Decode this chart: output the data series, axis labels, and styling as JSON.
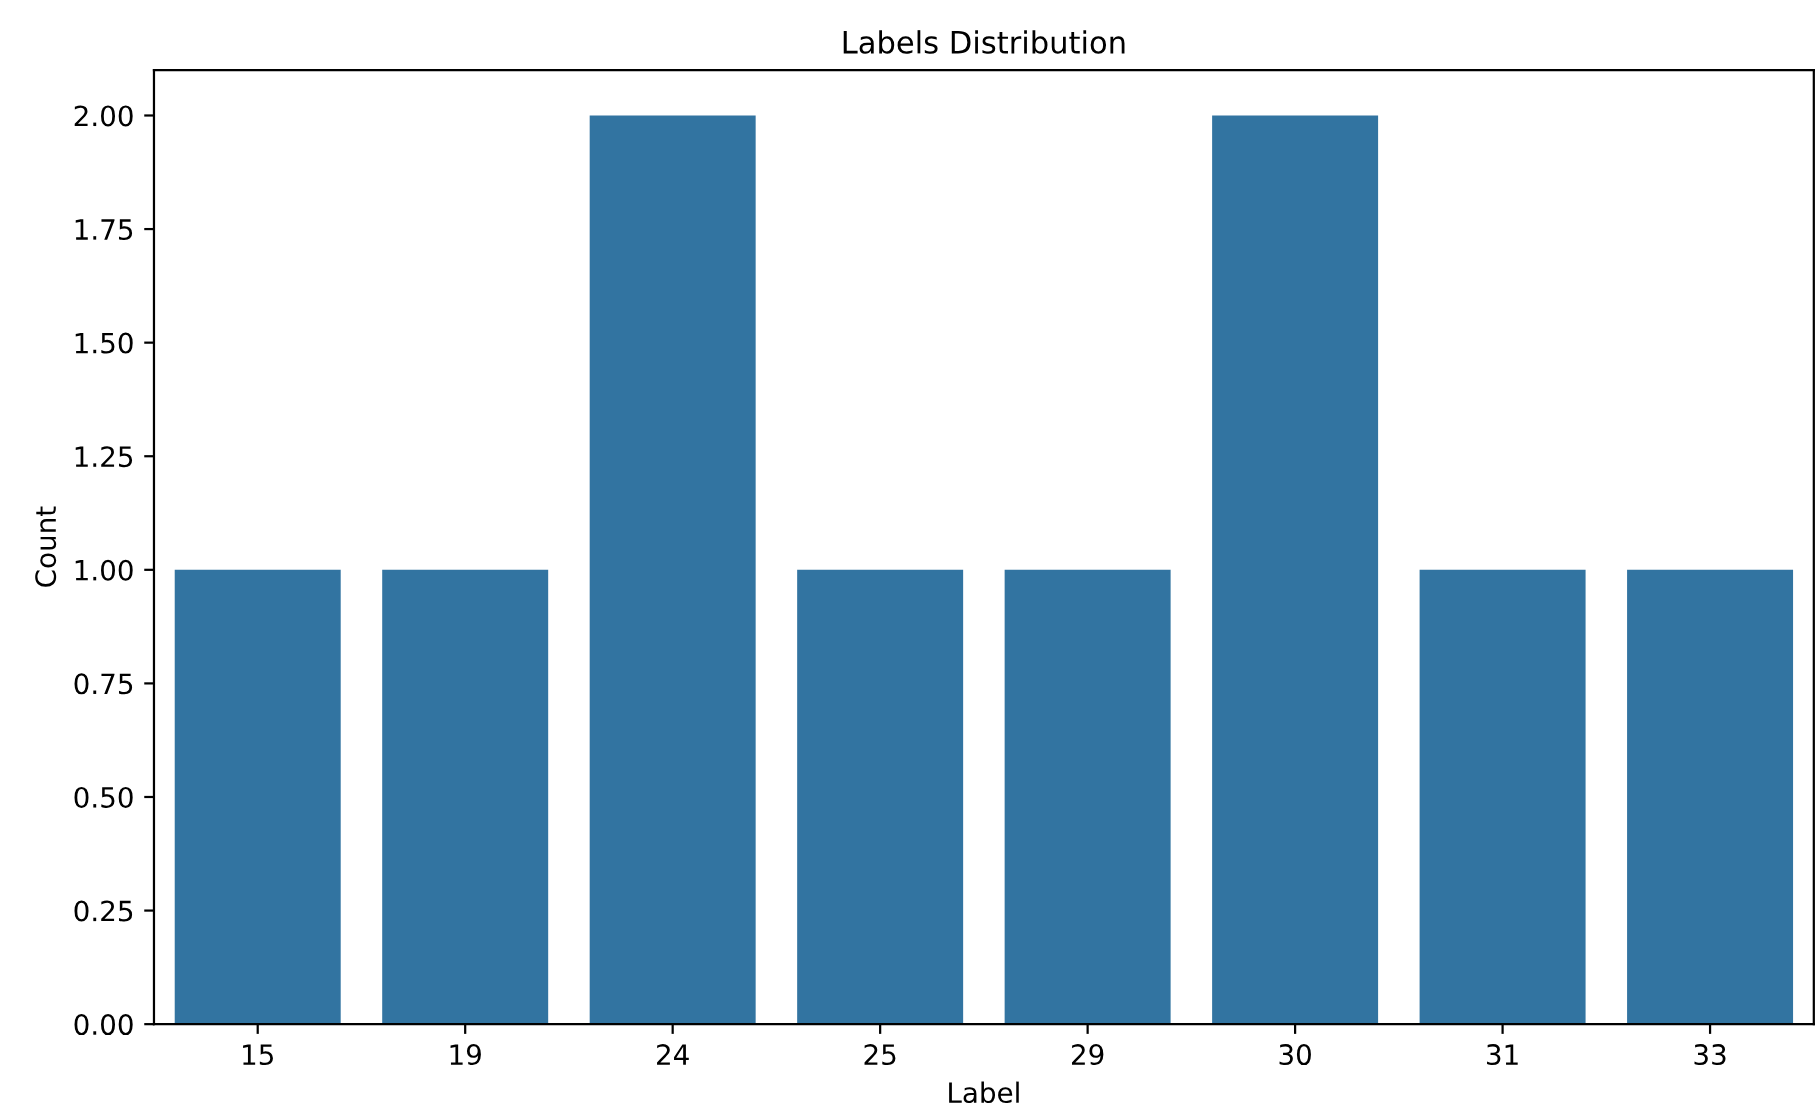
{
  "chart_data": {
    "type": "bar",
    "title": "Labels Distribution",
    "xlabel": "Label",
    "ylabel": "Count",
    "categories": [
      "15",
      "19",
      "24",
      "25",
      "29",
      "30",
      "31",
      "33"
    ],
    "values": [
      1,
      1,
      2,
      1,
      1,
      2,
      1,
      1
    ],
    "color": "#3274a1",
    "ylim": [
      0,
      2.1
    ],
    "yticks": [
      {
        "value": 0,
        "label": "0.00"
      },
      {
        "value": 0.25,
        "label": "0.25"
      },
      {
        "value": 0.5,
        "label": "0.50"
      },
      {
        "value": 0.75,
        "label": "0.75"
      },
      {
        "value": 1,
        "label": "1.00"
      },
      {
        "value": 1.25,
        "label": "1.25"
      },
      {
        "value": 1.5,
        "label": "1.50"
      },
      {
        "value": 1.75,
        "label": "1.75"
      },
      {
        "value": 2,
        "label": "2.00"
      }
    ],
    "grid": false,
    "legend": false
  }
}
